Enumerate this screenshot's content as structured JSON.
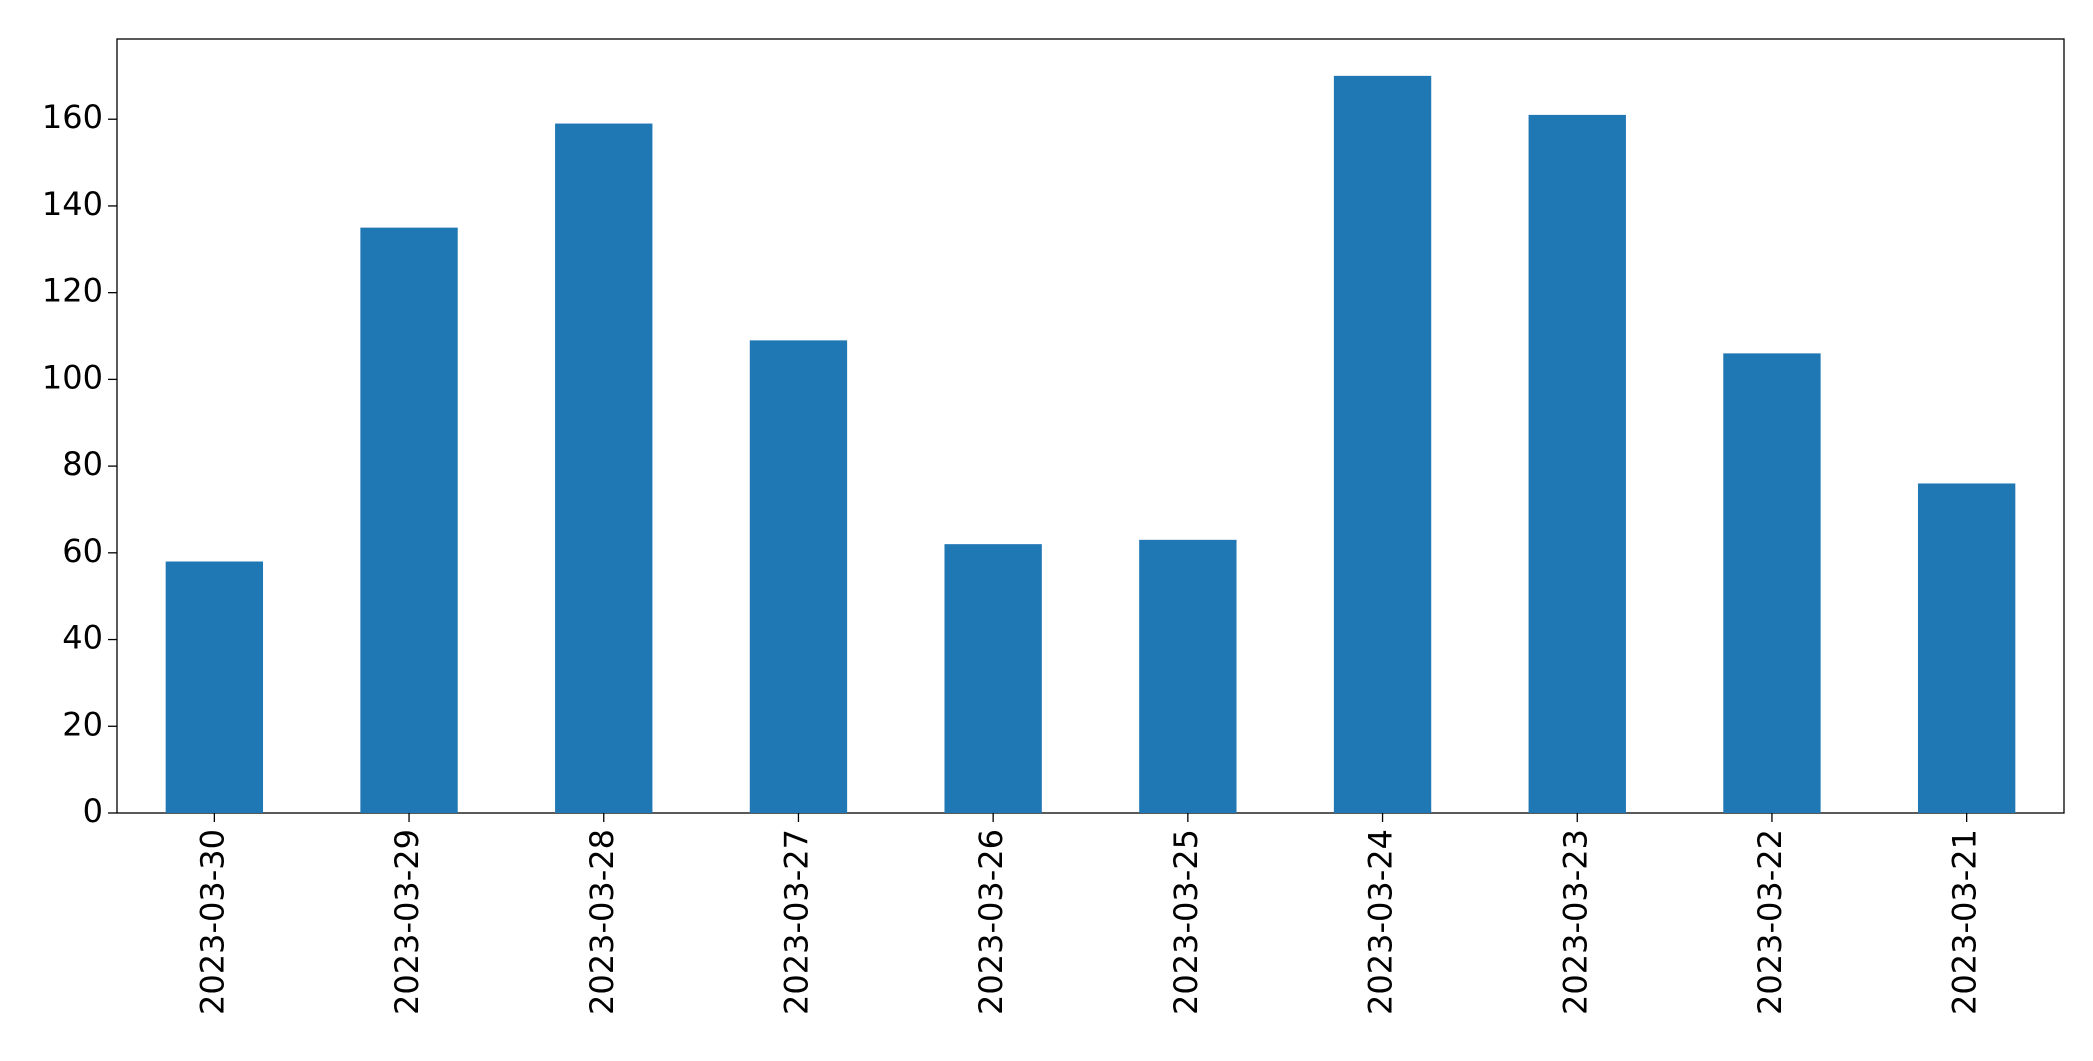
{
  "chart_data": {
    "type": "bar",
    "categories": [
      "2023-03-30",
      "2023-03-29",
      "2023-03-28",
      "2023-03-27",
      "2023-03-26",
      "2023-03-25",
      "2023-03-24",
      "2023-03-23",
      "2023-03-22",
      "2023-03-21"
    ],
    "values": [
      58,
      135,
      159,
      109,
      62,
      63,
      170,
      161,
      106,
      76
    ],
    "color": "#1f77b4",
    "ylim": [
      0,
      178.5
    ],
    "yticks": [
      0,
      20,
      40,
      60,
      80,
      100,
      120,
      140,
      160
    ],
    "grid": false
  }
}
